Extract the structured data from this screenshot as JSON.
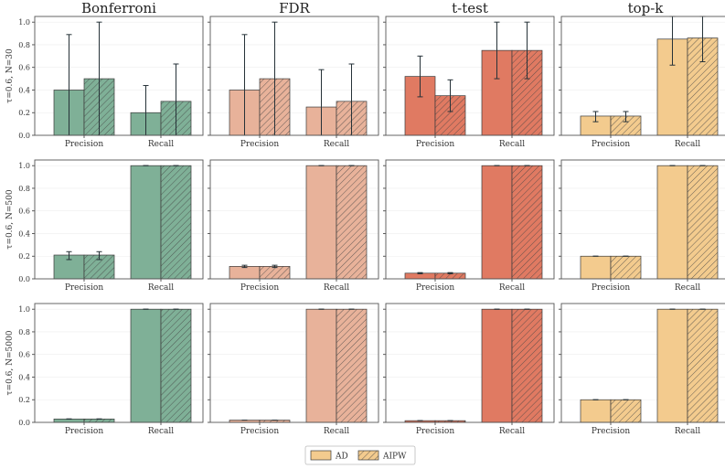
{
  "chart_data": {
    "type": "bar",
    "columns": [
      {
        "title": "Bonferroni",
        "color": "#7fb097"
      },
      {
        "title": "FDR",
        "color": "#e8b29a"
      },
      {
        "title": "t-test",
        "color": "#e07a62"
      },
      {
        "title": "top-k",
        "color": "#f3cb8e"
      }
    ],
    "rows": [
      {
        "label": "τ=0.6, N=30"
      },
      {
        "label": "τ=0.6, N=500"
      },
      {
        "label": "τ=0.6, N=5000"
      }
    ],
    "categories": [
      "Precision",
      "Recall"
    ],
    "series_names": [
      "AD",
      "AIPW"
    ],
    "ylim": [
      0,
      1.05
    ],
    "yticks": [
      "0.0",
      "0.2",
      "0.4",
      "0.6",
      "0.8",
      "1.0"
    ],
    "panels": [
      [
        {
          "AD": [
            0.4,
            0.2
          ],
          "AIPW": [
            0.5,
            0.3
          ],
          "AD_err": [
            [
              0.0,
              0.89
            ],
            [
              0.0,
              0.44
            ]
          ],
          "AIPW_err": [
            [
              0.0,
              1.0
            ],
            [
              0.0,
              0.63
            ]
          ]
        },
        {
          "AD": [
            0.4,
            0.25
          ],
          "AIPW": [
            0.5,
            0.3
          ],
          "AD_err": [
            [
              0.0,
              0.89
            ],
            [
              0.0,
              0.58
            ]
          ],
          "AIPW_err": [
            [
              0.0,
              1.0
            ],
            [
              0.0,
              0.63
            ]
          ]
        },
        {
          "AD": [
            0.52,
            0.75
          ],
          "AIPW": [
            0.35,
            0.75
          ],
          "AD_err": [
            [
              0.34,
              0.7
            ],
            [
              0.5,
              1.0
            ]
          ],
          "AIPW_err": [
            [
              0.21,
              0.49
            ],
            [
              0.5,
              1.0
            ]
          ]
        },
        {
          "AD": [
            0.17,
            0.85
          ],
          "AIPW": [
            0.17,
            0.86
          ],
          "AD_err": [
            [
              0.12,
              0.21
            ],
            [
              0.62,
              1.05
            ]
          ],
          "AIPW_err": [
            [
              0.12,
              0.21
            ],
            [
              0.65,
              1.05
            ]
          ]
        }
      ],
      [
        {
          "AD": [
            0.21,
            1.0
          ],
          "AIPW": [
            0.21,
            1.0
          ],
          "AD_err": [
            [
              0.17,
              0.24
            ],
            [
              1.0,
              1.0
            ]
          ],
          "AIPW_err": [
            [
              0.17,
              0.24
            ],
            [
              1.0,
              1.0
            ]
          ]
        },
        {
          "AD": [
            0.11,
            1.0
          ],
          "AIPW": [
            0.11,
            1.0
          ],
          "AD_err": [
            [
              0.1,
              0.12
            ],
            [
              1.0,
              1.0
            ]
          ],
          "AIPW_err": [
            [
              0.1,
              0.12
            ],
            [
              1.0,
              1.0
            ]
          ]
        },
        {
          "AD": [
            0.05,
            1.0
          ],
          "AIPW": [
            0.05,
            1.0
          ],
          "AD_err": [
            [
              0.045,
              0.055
            ],
            [
              1.0,
              1.0
            ]
          ],
          "AIPW_err": [
            [
              0.045,
              0.055
            ],
            [
              1.0,
              1.0
            ]
          ]
        },
        {
          "AD": [
            0.2,
            1.0
          ],
          "AIPW": [
            0.2,
            1.0
          ],
          "AD_err": [
            [
              0.2,
              0.2
            ],
            [
              1.0,
              1.0
            ]
          ],
          "AIPW_err": [
            [
              0.2,
              0.2
            ],
            [
              1.0,
              1.0
            ]
          ]
        }
      ],
      [
        {
          "AD": [
            0.03,
            1.0
          ],
          "AIPW": [
            0.03,
            1.0
          ],
          "AD_err": [
            [
              0.03,
              0.03
            ],
            [
              1.0,
              1.0
            ]
          ],
          "AIPW_err": [
            [
              0.03,
              0.03
            ],
            [
              1.0,
              1.0
            ]
          ]
        },
        {
          "AD": [
            0.02,
            1.0
          ],
          "AIPW": [
            0.02,
            1.0
          ],
          "AD_err": [
            [
              0.02,
              0.02
            ],
            [
              1.0,
              1.0
            ]
          ],
          "AIPW_err": [
            [
              0.02,
              0.02
            ],
            [
              1.0,
              1.0
            ]
          ]
        },
        {
          "AD": [
            0.015,
            1.0
          ],
          "AIPW": [
            0.015,
            1.0
          ],
          "AD_err": [
            [
              0.015,
              0.015
            ],
            [
              1.0,
              1.0
            ]
          ],
          "AIPW_err": [
            [
              0.015,
              0.015
            ],
            [
              1.0,
              1.0
            ]
          ]
        },
        {
          "AD": [
            0.2,
            1.0
          ],
          "AIPW": [
            0.2,
            1.0
          ],
          "AD_err": [
            [
              0.2,
              0.2
            ],
            [
              1.0,
              1.0
            ]
          ],
          "AIPW_err": [
            [
              0.2,
              0.2
            ],
            [
              1.0,
              1.0
            ]
          ]
        }
      ]
    ],
    "legend": {
      "entries": [
        "AD",
        "AIPW"
      ],
      "position": "bottom-center",
      "swatch_color": "#f3cb8e"
    }
  }
}
